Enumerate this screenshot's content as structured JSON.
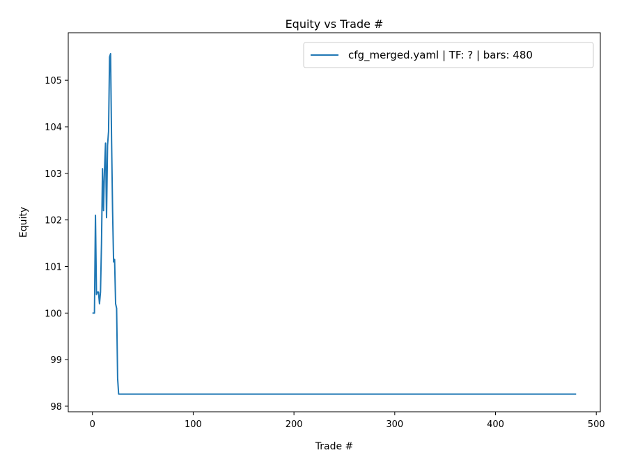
{
  "chart_data": {
    "type": "line",
    "title": "Equity vs Trade #",
    "xlabel": "Trade #",
    "ylabel": "Equity",
    "x": [
      0,
      1,
      2,
      3,
      4,
      5,
      6,
      7,
      8,
      9,
      10,
      11,
      12,
      13,
      14,
      15,
      16,
      17,
      18,
      19,
      20,
      21,
      22,
      23,
      24,
      25,
      26,
      480
    ],
    "series": [
      {
        "name": "cfg_merged.yaml | TF: ? | bars: 480",
        "color": "#1f77b4",
        "values": [
          100.0,
          100.0,
          100.0,
          102.1,
          100.4,
          100.45,
          100.45,
          100.2,
          100.45,
          101.5,
          103.1,
          102.2,
          103.1,
          103.65,
          102.05,
          103.6,
          103.9,
          105.5,
          105.57,
          103.7,
          102.2,
          101.1,
          101.15,
          100.2,
          100.1,
          98.6,
          98.26,
          98.26
        ]
      }
    ],
    "xlim": [
      -24,
      504
    ],
    "xticks": [
      0,
      100,
      200,
      300,
      400,
      500
    ],
    "ylim": [
      97.88,
      106.02
    ],
    "yticks": [
      98,
      99,
      100,
      101,
      102,
      103,
      104,
      105
    ],
    "legend": "upper right"
  }
}
